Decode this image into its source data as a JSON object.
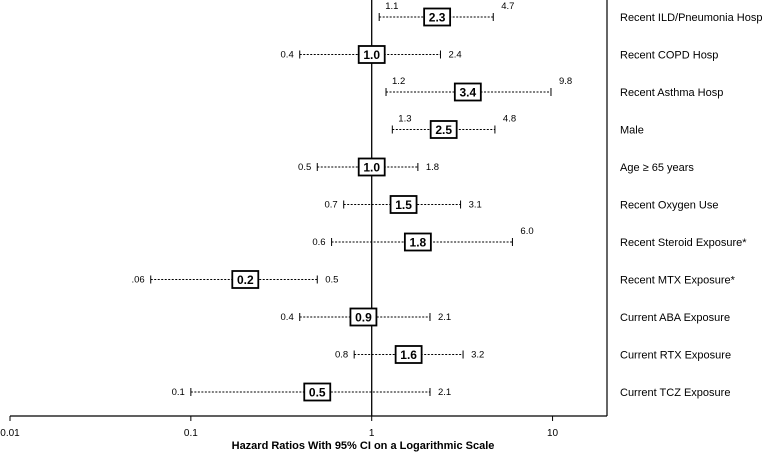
{
  "chart_data": {
    "type": "forest",
    "scale": "log",
    "xlim": [
      0.01,
      20
    ],
    "reference_line": 1,
    "x_ticks": [
      {
        "value": 0.01,
        "label": "0.01"
      },
      {
        "value": 0.1,
        "label": "0.1"
      },
      {
        "value": 1,
        "label": "1"
      },
      {
        "value": 10,
        "label": "10"
      }
    ],
    "xlabel": "Hazard Ratios With 95% CI on a Logarithmic Scale",
    "rows": [
      {
        "label": "Recent ILD/Pneumonia Hosp",
        "hr": 2.3,
        "hr_label": "2.3",
        "lower": 1.1,
        "lower_label": "1.1",
        "upper": 4.7,
        "upper_label": "4.7"
      },
      {
        "label": "Recent COPD Hosp",
        "hr": 1.0,
        "hr_label": "1.0",
        "lower": 0.4,
        "lower_label": "0.4",
        "upper": 2.4,
        "upper_label": "2.4"
      },
      {
        "label": "Recent Asthma Hosp",
        "hr": 3.4,
        "hr_label": "3.4",
        "lower": 1.2,
        "lower_label": "1.2",
        "upper": 9.8,
        "upper_label": "9.8"
      },
      {
        "label": "Male",
        "hr": 2.5,
        "hr_label": "2.5",
        "lower": 1.3,
        "lower_label": "1.3",
        "upper": 4.8,
        "upper_label": "4.8"
      },
      {
        "label": "Age ≥ 65 years",
        "hr": 1.0,
        "hr_label": "1.0",
        "lower": 0.5,
        "lower_label": "0.5",
        "upper": 1.8,
        "upper_label": "1.8"
      },
      {
        "label": "Recent Oxygen Use",
        "hr": 1.5,
        "hr_label": "1.5",
        "lower": 0.7,
        "lower_label": "0.7",
        "upper": 3.1,
        "upper_label": "3.1"
      },
      {
        "label": "Recent Steroid Exposure*",
        "hr": 1.8,
        "hr_label": "1.8",
        "lower": 0.6,
        "lower_label": "0.6",
        "upper": 6.0,
        "upper_label": "6.0"
      },
      {
        "label": "Recent MTX Exposure*",
        "hr": 0.2,
        "hr_label": "0.2",
        "lower": 0.06,
        "lower_label": ".06",
        "upper": 0.5,
        "upper_label": "0.5"
      },
      {
        "label": "Current ABA Exposure",
        "hr": 0.9,
        "hr_label": "0.9",
        "lower": 0.4,
        "lower_label": "0.4",
        "upper": 2.1,
        "upper_label": "2.1"
      },
      {
        "label": "Current RTX Exposure",
        "hr": 1.6,
        "hr_label": "1.6",
        "lower": 0.8,
        "lower_label": "0.8",
        "upper": 3.2,
        "upper_label": "3.2"
      },
      {
        "label": "Current TCZ Exposure",
        "hr": 0.5,
        "hr_label": "0.5",
        "lower": 0.1,
        "lower_label": "0.1",
        "upper": 2.1,
        "upper_label": "2.1"
      }
    ]
  }
}
